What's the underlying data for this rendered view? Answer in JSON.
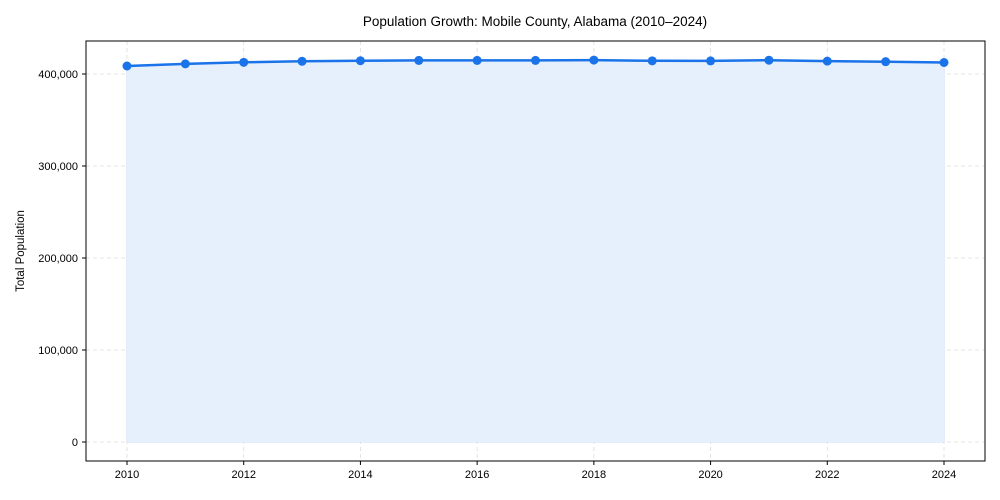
{
  "chart_data": {
    "type": "line",
    "title": "Population Growth: Mobile County, Alabama (2010–2024)",
    "xlabel": "",
    "ylabel": "Total Population",
    "x": [
      2010,
      2011,
      2012,
      2013,
      2014,
      2015,
      2016,
      2017,
      2018,
      2019,
      2020,
      2021,
      2022,
      2023,
      2024
    ],
    "series": [
      {
        "name": "Total Population",
        "values": [
          408700,
          411000,
          412700,
          413800,
          414400,
          414800,
          414800,
          414800,
          415100,
          414300,
          414200,
          415000,
          414000,
          413400,
          412500
        ],
        "color": "#1a73e8",
        "fill": "#e6f0fd",
        "marker": "circle"
      }
    ],
    "xticks": [
      "2010",
      "2012",
      "2014",
      "2016",
      "2018",
      "2020",
      "2022",
      "2024"
    ],
    "yticks": [
      "0",
      "100,000",
      "200,000",
      "300,000",
      "400,000"
    ],
    "ytick_values": [
      0,
      100000,
      200000,
      300000,
      400000
    ],
    "xlim": [
      2009.3,
      2024.7
    ],
    "ylim": [
      -20800,
      436000
    ],
    "grid": true,
    "legend": null
  }
}
